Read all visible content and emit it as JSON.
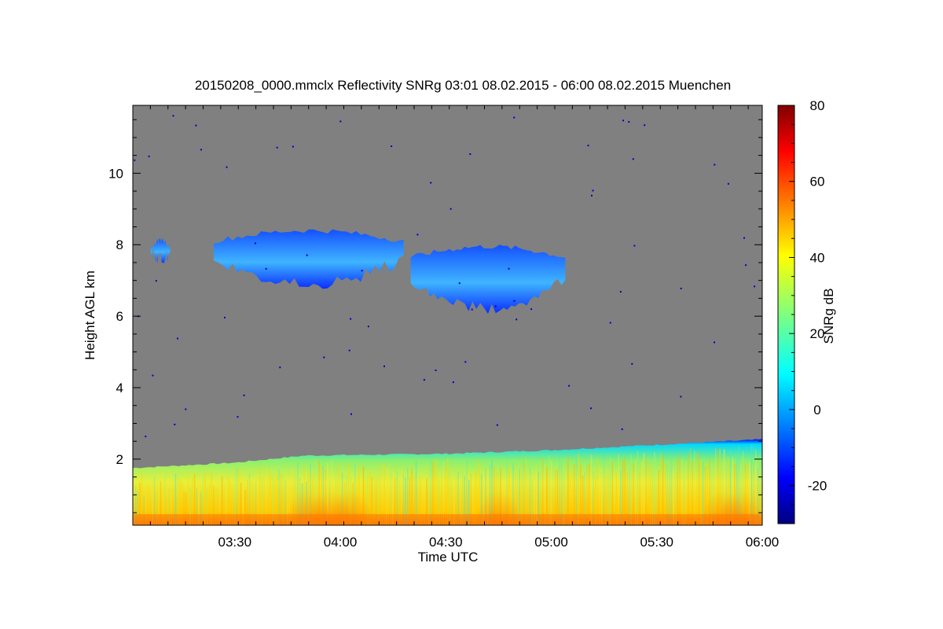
{
  "chart_data": {
    "type": "heatmap",
    "title": "20150208_0000.mmclx Reflectivity SNRg   03:01 08.02.2015 - 06:00 08.02.2015 Muenchen",
    "xlabel": "Time UTC",
    "ylabel": "Height AGL km",
    "colorbar_label": "SNRg dB",
    "x_range_utc": [
      "03:01",
      "06:00"
    ],
    "x_ticks": [
      "03:30",
      "04:00",
      "04:30",
      "05:00",
      "05:30",
      "06:00"
    ],
    "ylim_km": [
      0.15,
      11.9
    ],
    "y_ticks": [
      2,
      4,
      6,
      8,
      10
    ],
    "colorbar_range_db": [
      -30,
      80
    ],
    "colorbar_ticks": [
      -20,
      0,
      20,
      40,
      60,
      80
    ],
    "colormap": "jet",
    "no_signal_color": "#808080",
    "features": {
      "boundary_layer_top_km": [
        {
          "t": "03:01",
          "h": 1.75
        },
        {
          "t": "03:30",
          "h": 1.9
        },
        {
          "t": "03:50",
          "h": 2.1
        },
        {
          "t": "04:30",
          "h": 2.15
        },
        {
          "t": "05:00",
          "h": 2.25
        },
        {
          "t": "05:30",
          "h": 2.4
        },
        {
          "t": "06:00",
          "h": 2.55
        }
      ],
      "cirrus_layers": [
        {
          "start": "03:06",
          "end": "03:12",
          "base_km": 7.6,
          "top_km": 8.15
        },
        {
          "start": "03:24",
          "end": "04:18",
          "base_km": 6.9,
          "top_km": 8.4
        },
        {
          "start": "04:20",
          "end": "05:04",
          "base_km": 6.2,
          "top_km": 7.95
        }
      ],
      "bl_strong_echo_times": [
        "03:51",
        "03:57",
        "04:03",
        "04:45",
        "05:49",
        "05:54"
      ]
    }
  }
}
